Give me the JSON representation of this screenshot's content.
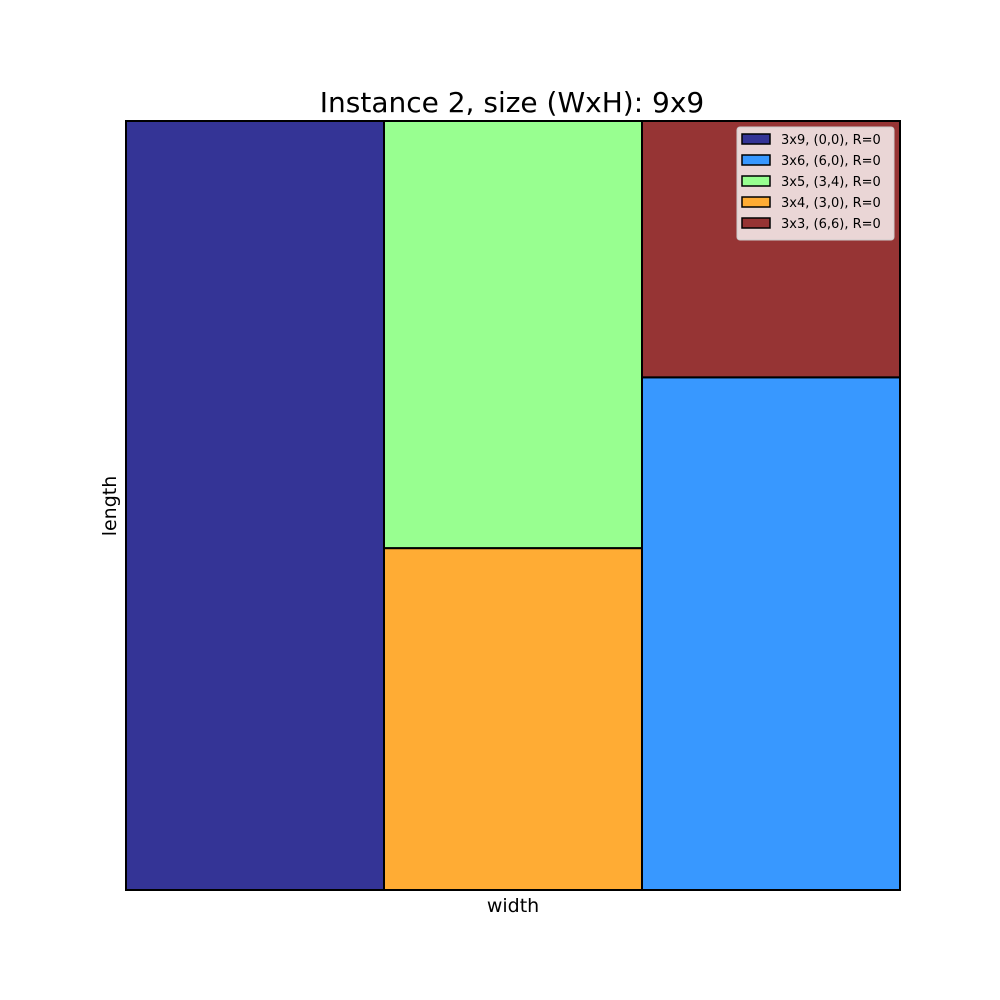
{
  "chart_data": {
    "type": "rectangle-packing",
    "title": "Instance 2, size (WxH): 9x9",
    "xlabel": "width",
    "ylabel": "length",
    "xlim": [
      0,
      9
    ],
    "ylim": [
      0,
      9
    ],
    "grid": false,
    "ticks": false,
    "legend_position": "top-right",
    "rectangles": [
      {
        "label": "3x9, (0,0), R=0",
        "x": 0,
        "y": 0,
        "w": 3,
        "h": 9,
        "color": "#343496"
      },
      {
        "label": "3x6, (6,0), R=0",
        "x": 6,
        "y": 0,
        "w": 3,
        "h": 6,
        "color": "#3898ff"
      },
      {
        "label": "3x5, (3,4), R=0",
        "x": 3,
        "y": 4,
        "w": 3,
        "h": 5,
        "color": "#98ff90"
      },
      {
        "label": "3x4, (3,0), R=0",
        "x": 3,
        "y": 0,
        "w": 3,
        "h": 4,
        "color": "#ffac34"
      },
      {
        "label": "3x3, (6,6), R=0",
        "x": 6,
        "y": 6,
        "w": 3,
        "h": 3,
        "color": "#963434"
      }
    ]
  }
}
